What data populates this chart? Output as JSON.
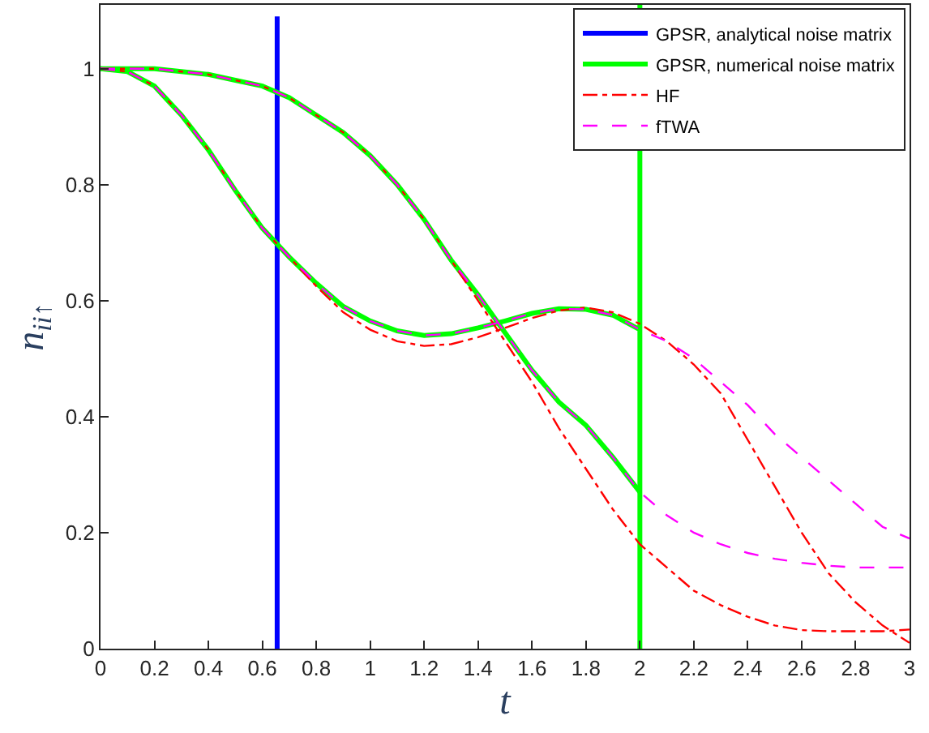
{
  "chart_data": {
    "type": "line",
    "xlabel": "t",
    "ylabel": "n$_{ii↑}$",
    "xlim": [
      0,
      3
    ],
    "ylim": [
      0,
      1.11
    ],
    "xticks": [
      0,
      0.2,
      0.4,
      0.6,
      0.8,
      1,
      1.2,
      1.4,
      1.6,
      1.8,
      2,
      2.2,
      2.4,
      2.6,
      2.8,
      3
    ],
    "yticks": [
      0,
      0.2,
      0.4,
      0.6,
      0.8,
      1
    ],
    "grid": false,
    "legend": "top right",
    "marker": "none",
    "series": [
      {
        "name": "GPSR, analytical noise matrix",
        "color": "#0000ff",
        "line_style": "solid",
        "x": [
          0.655,
          0.655
        ],
        "values": [
          1.09,
          0
        ]
      },
      {
        "name": "GPSR, numerical noise matrix",
        "color": "#00ff00",
        "line_style": "solid",
        "x": [
          0,
          0.1,
          0.2,
          0.3,
          0.4,
          0.5,
          0.6,
          0.7,
          0.8,
          0.9,
          1.0,
          1.1,
          1.2,
          1.3,
          1.4,
          1.5,
          1.6,
          1.7,
          1.8,
          1.9,
          2.0,
          null,
          0,
          0.1,
          0.2,
          0.3,
          0.4,
          0.5,
          0.6,
          0.7,
          0.8,
          0.9,
          1.0,
          1.1,
          1.2,
          1.3,
          1.4,
          1.5,
          1.6,
          1.7,
          1.8,
          1.9,
          2.0,
          2.0,
          2.0
        ],
        "values": [
          1,
          1,
          1,
          0.995,
          0.99,
          0.98,
          0.97,
          0.95,
          0.92,
          0.89,
          0.85,
          0.8,
          0.74,
          0.67,
          0.61,
          0.545,
          0.48,
          0.425,
          0.385,
          0.33,
          0.27,
          null,
          1,
          0.995,
          0.97,
          0.92,
          0.86,
          0.79,
          0.725,
          0.675,
          0.63,
          0.59,
          0.565,
          0.548,
          0.54,
          0.543,
          0.553,
          0.565,
          0.578,
          0.586,
          0.585,
          0.575,
          0.55,
          1.11,
          0
        ]
      },
      {
        "name": "HF",
        "color": "#ff0000",
        "line_style": "dashdot",
        "x": [
          0,
          0.1,
          0.2,
          0.3,
          0.4,
          0.5,
          0.6,
          0.7,
          0.8,
          0.9,
          1.0,
          1.1,
          1.2,
          1.3,
          1.4,
          1.5,
          1.6,
          1.7,
          1.8,
          1.9,
          2.0,
          2.1,
          2.2,
          2.3,
          2.4,
          2.5,
          2.6,
          2.7,
          2.8,
          2.9,
          3.0,
          null,
          0,
          0.1,
          0.2,
          0.3,
          0.4,
          0.5,
          0.6,
          0.7,
          0.8,
          0.9,
          1.0,
          1.1,
          1.2,
          1.3,
          1.4,
          1.5,
          1.6,
          1.7,
          1.8,
          1.9,
          2.0,
          2.1,
          2.2,
          2.3,
          2.4,
          2.5,
          2.6,
          2.7,
          2.8,
          2.9,
          3.0
        ],
        "values": [
          1,
          1,
          1,
          0.995,
          0.99,
          0.98,
          0.97,
          0.95,
          0.92,
          0.89,
          0.85,
          0.8,
          0.74,
          0.67,
          0.6,
          0.53,
          0.46,
          0.38,
          0.31,
          0.24,
          0.18,
          0.14,
          0.1,
          0.075,
          0.055,
          0.04,
          0.032,
          0.03,
          0.03,
          0.03,
          0.033,
          null,
          1,
          0.995,
          0.97,
          0.92,
          0.86,
          0.79,
          0.725,
          0.675,
          0.625,
          0.58,
          0.55,
          0.53,
          0.522,
          0.525,
          0.537,
          0.553,
          0.57,
          0.583,
          0.588,
          0.58,
          0.56,
          0.53,
          0.49,
          0.44,
          0.36,
          0.28,
          0.2,
          0.13,
          0.08,
          0.04,
          0.01
        ]
      },
      {
        "name": "fTWA",
        "color": "#ff00ff",
        "line_style": "dashed",
        "x": [
          0,
          0.1,
          0.2,
          0.3,
          0.4,
          0.5,
          0.6,
          0.7,
          0.8,
          0.9,
          1.0,
          1.1,
          1.2,
          1.3,
          1.4,
          1.5,
          1.6,
          1.7,
          1.8,
          1.9,
          2.0,
          2.1,
          2.2,
          2.3,
          2.4,
          2.5,
          2.6,
          2.7,
          2.8,
          2.9,
          3.0,
          null,
          0,
          0.1,
          0.2,
          0.3,
          0.4,
          0.5,
          0.6,
          0.7,
          0.8,
          0.9,
          1.0,
          1.1,
          1.2,
          1.3,
          1.4,
          1.5,
          1.6,
          1.7,
          1.8,
          1.9,
          2.0,
          2.1,
          2.2,
          2.3,
          2.4,
          2.5,
          2.6,
          2.7,
          2.8,
          2.9,
          3.0
        ],
        "values": [
          1,
          1,
          1,
          0.995,
          0.99,
          0.98,
          0.97,
          0.95,
          0.92,
          0.89,
          0.85,
          0.8,
          0.74,
          0.67,
          0.61,
          0.545,
          0.48,
          0.425,
          0.385,
          0.33,
          0.27,
          0.23,
          0.2,
          0.18,
          0.165,
          0.155,
          0.148,
          0.143,
          0.14,
          0.14,
          0.14,
          null,
          1,
          0.995,
          0.97,
          0.92,
          0.86,
          0.79,
          0.725,
          0.675,
          0.63,
          0.59,
          0.565,
          0.548,
          0.54,
          0.543,
          0.553,
          0.565,
          0.578,
          0.586,
          0.585,
          0.575,
          0.55,
          0.53,
          0.5,
          0.46,
          0.42,
          0.37,
          0.33,
          0.29,
          0.25,
          0.21,
          0.19
        ]
      }
    ]
  }
}
